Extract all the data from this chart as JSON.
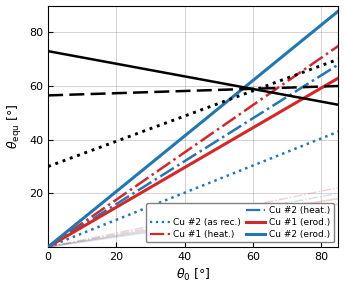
{
  "figsize": [
    3.44,
    2.89
  ],
  "dpi": 100,
  "xlim": [
    0,
    85
  ],
  "ylim": [
    0,
    90
  ],
  "xticks": [
    0,
    20,
    40,
    60,
    80
  ],
  "yticks": [
    20,
    40,
    60,
    80
  ],
  "xlabel": "$\\theta_0$ [°]",
  "ylabel": "$\\theta_\\mathrm{equ}$ [°]",
  "cu1_red": "#d62728",
  "cu2_blue": "#1f77b4",
  "black": "#000000",
  "black_solid": [
    73.0,
    53.0
  ],
  "black_dashed": [
    56.5,
    60.0
  ],
  "black_dotted": [
    30.0,
    70.0
  ],
  "cu2_asrec_slope": 0.506,
  "cu1_heat_slope": 0.882,
  "cu2_heat_slope": 0.8,
  "cu1_erod_slope": 0.741,
  "cu2_erod_slope": 1.035,
  "faint_cu1_heat_slope": 0.26,
  "faint_cu2_heat_slope": 0.235,
  "faint_cu1_erod_slope": 0.212,
  "faint_cu2_erod_slope": 0.188,
  "lw_black": 1.8,
  "lw_color": 1.8,
  "lw_color_solid": 2.2
}
